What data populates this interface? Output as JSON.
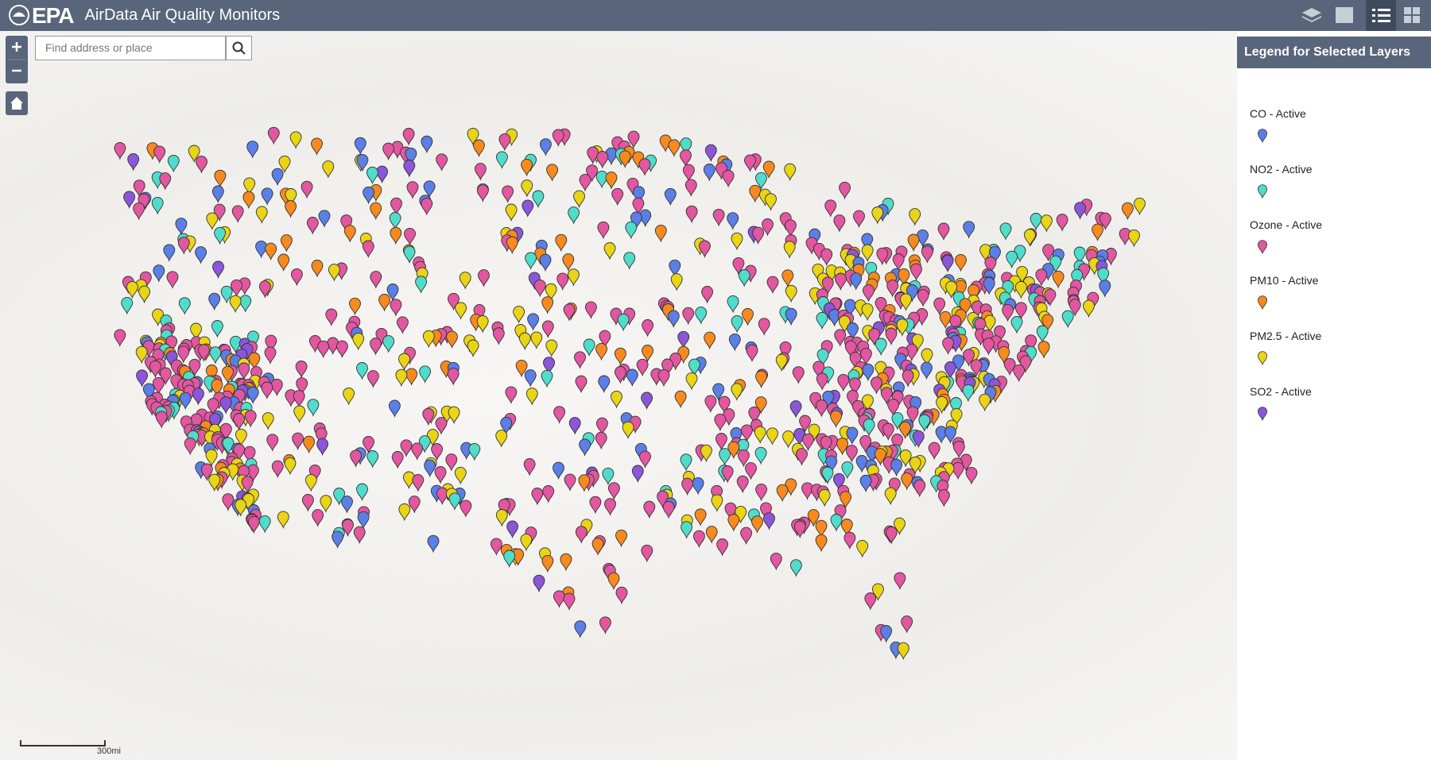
{
  "header": {
    "logo": "EPA",
    "title": "AirData Air Quality Monitors"
  },
  "search": {
    "placeholder": "Find address or place"
  },
  "legend": {
    "title": "Legend for Selected Layers",
    "items": [
      {
        "label": "CO - Active",
        "color": "#5b7fe6"
      },
      {
        "label": "NO2 - Active",
        "color": "#4fdccb"
      },
      {
        "label": "Ozone - Active",
        "color": "#e2579f"
      },
      {
        "label": "PM10 - Active",
        "color": "#f68a1e"
      },
      {
        "label": "PM2.5 - Active",
        "color": "#e9d416"
      },
      {
        "label": "SO2 - Active",
        "color": "#8b56d8"
      }
    ]
  },
  "scale": {
    "label": "300mi"
  }
}
